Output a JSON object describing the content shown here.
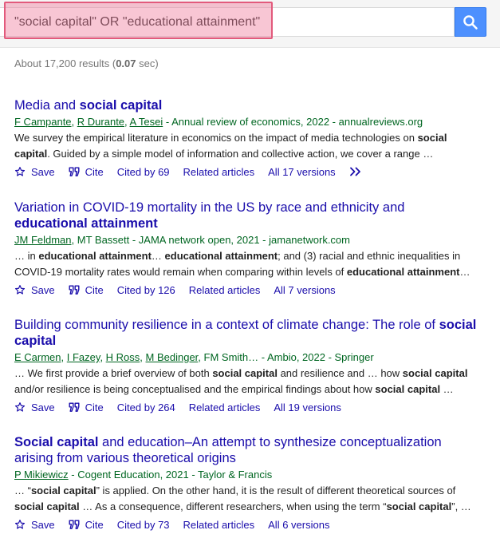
{
  "search": {
    "query": "\"social capital\" OR \"educational attainment\"",
    "button_icon": "search-icon",
    "accent_color": "#4d90fe"
  },
  "stats": {
    "prefix": "About 17,200 results (",
    "time": "0.07",
    "suffix": " sec)"
  },
  "actions": {
    "save": "Save",
    "cite": "Cite",
    "related": "Related articles"
  },
  "results": [
    {
      "title": [
        {
          "t": "Media and "
        },
        {
          "t": "social capital",
          "b": true
        }
      ],
      "authors": [
        "F Campante",
        "R Durante",
        "A Tesei"
      ],
      "meta_tail": " - Annual review of economics, 2022 - annualreviews.org",
      "snippet": [
        {
          "t": "We survey the empirical literature in economics on the impact of media technologies on "
        },
        {
          "t": "social capital",
          "b": true
        },
        {
          "t": ". Guided by a simple model of information and collective action, we cover a range …"
        }
      ],
      "cited_by": "Cited by 69",
      "versions": "All 17 versions",
      "has_more": true
    },
    {
      "title": [
        {
          "t": "Variation in COVID-19 mortality in the US by race and ethnicity and "
        },
        {
          "t": "educational attainment",
          "b": true
        }
      ],
      "authors": [
        "JM Feldman"
      ],
      "meta_tail": ", MT Bassett - JAMA network open, 2021 - jamanetwork.com",
      "snippet": [
        {
          "t": "… in "
        },
        {
          "t": "educational attainment",
          "b": true
        },
        {
          "t": "… "
        },
        {
          "t": "educational attainment",
          "b": true
        },
        {
          "t": "; and (3) racial and ethnic inequalities in COVID-19 mortality rates would remain when comparing within levels of "
        },
        {
          "t": "educational attainment",
          "b": true
        },
        {
          "t": "…"
        }
      ],
      "cited_by": "Cited by 126",
      "versions": "All 7 versions",
      "has_more": false
    },
    {
      "title": [
        {
          "t": "Building community resilience in a context of climate change: The role of "
        },
        {
          "t": "social capital",
          "b": true
        }
      ],
      "authors": [
        "E Carmen",
        "I Fazey",
        "H Ross",
        "M Bedinger"
      ],
      "meta_tail": ", FM Smith… - Ambio, 2022 - Springer",
      "snippet": [
        {
          "t": "… We first provide a brief overview of both "
        },
        {
          "t": "social capital",
          "b": true
        },
        {
          "t": " and resilience and … how "
        },
        {
          "t": "social capital",
          "b": true
        },
        {
          "t": " and/or resilience is being conceptualised and the empirical findings about how "
        },
        {
          "t": "social capital",
          "b": true
        },
        {
          "t": " …"
        }
      ],
      "cited_by": "Cited by 264",
      "versions": "All 19 versions",
      "has_more": false
    },
    {
      "title": [
        {
          "t": "Social capital",
          "b": true
        },
        {
          "t": " and education–An attempt to synthesize conceptualization arising from various theoretical origins"
        }
      ],
      "authors": [
        "P Mikiewicz"
      ],
      "meta_tail": " - Cogent Education, 2021 - Taylor & Francis",
      "snippet": [
        {
          "t": "… “"
        },
        {
          "t": "social capital",
          "b": true
        },
        {
          "t": "” is applied. On the other hand, it is the result of different theoretical sources of "
        },
        {
          "t": "social capital",
          "b": true
        },
        {
          "t": " … As a consequence, different researchers, when using the term “"
        },
        {
          "t": "social capital",
          "b": true
        },
        {
          "t": "”, …"
        }
      ],
      "cited_by": "Cited by 73",
      "versions": "All 6 versions",
      "has_more": false
    }
  ]
}
